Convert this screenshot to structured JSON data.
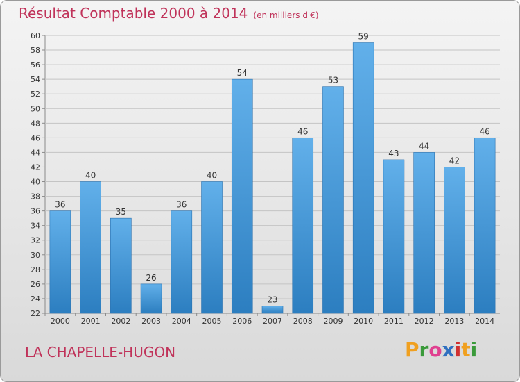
{
  "title": "Résultat Comptable 2000 à 2014",
  "subtitle": "(en milliers d'€)",
  "commune": "LA CHAPELLE-HUGON",
  "brand": "Proxiti",
  "brand_colors": [
    "#f0a020",
    "#3a9a3a",
    "#e04090",
    "#3070c0",
    "#d03030",
    "#f0a020",
    "#3a9a3a"
  ],
  "colors": {
    "bar_top": "#62b0ea",
    "bar_bottom": "#2c7ec0",
    "accent": "#c0335a"
  },
  "chart_data": {
    "type": "bar",
    "title": "Résultat Comptable 2000 à 2014",
    "subtitle": "(en milliers d'€)",
    "categories": [
      "2000",
      "2001",
      "2002",
      "2003",
      "2004",
      "2005",
      "2006",
      "2007",
      "2008",
      "2009",
      "2010",
      "2011",
      "2012",
      "2013",
      "2014"
    ],
    "values": [
      36,
      40,
      35,
      26,
      36,
      40,
      54,
      23,
      46,
      53,
      59,
      43,
      44,
      42,
      46
    ],
    "xlabel": "",
    "ylabel": "",
    "ylim": [
      22,
      60
    ],
    "yticks": [
      22,
      24,
      26,
      28,
      30,
      32,
      34,
      36,
      38,
      40,
      42,
      44,
      46,
      48,
      50,
      52,
      54,
      56,
      58,
      60
    ],
    "grid": true,
    "legend": "none"
  }
}
